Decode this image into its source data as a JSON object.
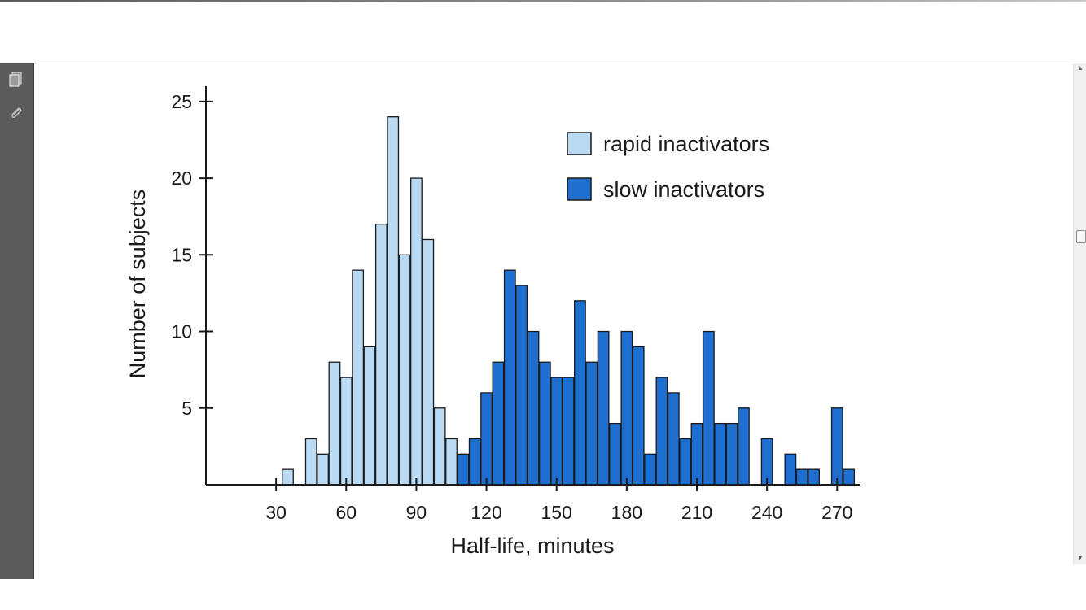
{
  "window": {
    "left_rail_icons": [
      "pages-icon",
      "attachment-icon"
    ]
  },
  "chart_data": {
    "type": "bar",
    "xlabel": "Half-life, minutes",
    "ylabel": "Number of subjects",
    "xlim": [
      0,
      280
    ],
    "ylim": [
      0,
      26
    ],
    "x_ticks": [
      30,
      60,
      90,
      120,
      150,
      180,
      210,
      240,
      270
    ],
    "y_ticks": [
      5,
      10,
      15,
      20,
      25
    ],
    "grid": false,
    "legend_position": "top-right",
    "bin_width": 4.7,
    "colors": {
      "rapid inactivators": "#b9daf2",
      "slow inactivators": "#1f6fd1"
    },
    "series": [
      {
        "name": "rapid inactivators",
        "x": [
          35,
          45,
          50,
          55,
          60,
          65,
          70,
          75,
          80,
          85,
          90,
          95,
          100,
          105
        ],
        "values": [
          1,
          3,
          2,
          8,
          7,
          14,
          9,
          17,
          24,
          15,
          20,
          16,
          5,
          3
        ]
      },
      {
        "name": "slow inactivators",
        "x": [
          110,
          115,
          120,
          125,
          130,
          135,
          140,
          145,
          150,
          155,
          160,
          165,
          170,
          175,
          180,
          185,
          190,
          195,
          200,
          205,
          210,
          215,
          220,
          225,
          230,
          240,
          250,
          255,
          260,
          270,
          275
        ],
        "values": [
          2,
          3,
          6,
          8,
          14,
          13,
          10,
          8,
          7,
          7,
          12,
          8,
          10,
          4,
          10,
          9,
          2,
          7,
          6,
          3,
          4,
          10,
          4,
          4,
          5,
          3,
          2,
          1,
          1,
          5,
          1
        ]
      }
    ]
  }
}
